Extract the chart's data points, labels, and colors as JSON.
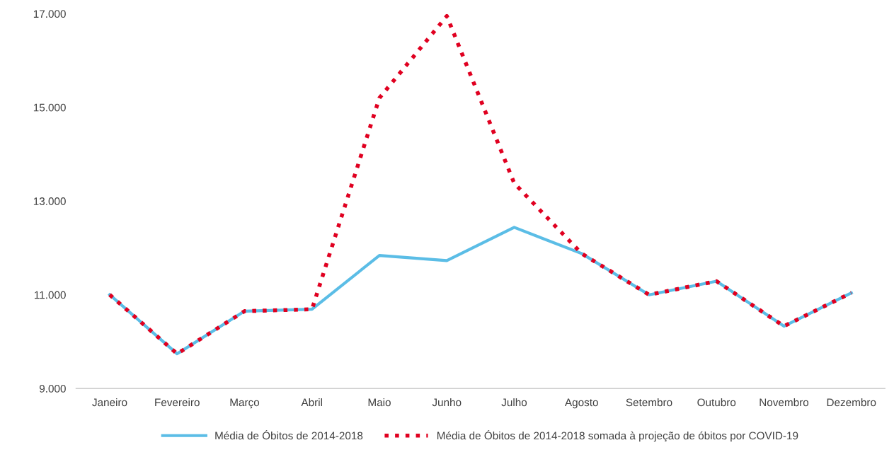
{
  "chart_data": {
    "type": "line",
    "categories": [
      "Janeiro",
      "Fevereiro",
      "Março",
      "Abril",
      "Maio",
      "Junho",
      "Julho",
      "Agosto",
      "Setembro",
      "Outubro",
      "Novembro",
      "Dezembro"
    ],
    "series": [
      {
        "name": "Média de Óbitos de 2014-2018",
        "color": "#5bbde6",
        "line_style": "solid",
        "values": [
          11000,
          9740,
          10650,
          10690,
          11840,
          11730,
          12440,
          11880,
          11000,
          11290,
          10330,
          11040
        ]
      },
      {
        "name": "Média de Óbitos de 2014-2018 somada à projeção de óbitos por COVID-19",
        "color": "#e00020",
        "line_style": "dotted",
        "values": [
          11000,
          9740,
          10650,
          10690,
          15200,
          16950,
          13380,
          11880,
          11000,
          11290,
          10330,
          11040
        ]
      }
    ],
    "ylim": [
      9000,
      17000
    ],
    "yticks": [
      {
        "value": 9000,
        "label": "9.000"
      },
      {
        "value": 11000,
        "label": "11.000"
      },
      {
        "value": 13000,
        "label": "13.000"
      },
      {
        "value": 15000,
        "label": "15.000"
      },
      {
        "value": 17000,
        "label": "17.000"
      }
    ],
    "grid": false,
    "legend": "bottom",
    "marker": "none"
  }
}
